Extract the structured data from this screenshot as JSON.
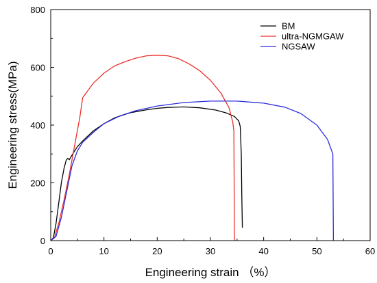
{
  "chart_data": {
    "type": "line",
    "xlabel": "Engineering strain （%）",
    "ylabel": "Engineering stress(MPa)",
    "xlim": [
      0,
      60
    ],
    "ylim": [
      0,
      800
    ],
    "x_ticks": [
      0,
      10,
      20,
      30,
      40,
      50,
      60
    ],
    "y_ticks": [
      0,
      200,
      400,
      600,
      800
    ],
    "grid": false,
    "legend_position": "top-right",
    "series": [
      {
        "name": "BM",
        "color": "#000000",
        "points": [
          [
            0,
            0
          ],
          [
            0.5,
            10
          ],
          [
            1,
            60
          ],
          [
            1.5,
            130
          ],
          [
            2,
            200
          ],
          [
            2.5,
            250
          ],
          [
            2.9,
            278
          ],
          [
            3.2,
            285
          ],
          [
            3.5,
            280
          ],
          [
            3.8,
            290
          ],
          [
            4.3,
            305
          ],
          [
            5,
            325
          ],
          [
            6,
            345
          ],
          [
            8,
            380
          ],
          [
            10,
            405
          ],
          [
            12,
            425
          ],
          [
            15,
            443
          ],
          [
            18,
            453
          ],
          [
            20,
            458
          ],
          [
            22,
            461
          ],
          [
            25,
            463
          ],
          [
            28,
            460
          ],
          [
            31,
            452
          ],
          [
            33,
            442
          ],
          [
            34.5,
            430
          ],
          [
            35.3,
            415
          ],
          [
            35.6,
            395
          ],
          [
            35.8,
            300
          ],
          [
            35.9,
            150
          ],
          [
            36.0,
            45
          ]
        ]
      },
      {
        "name": "ultra-NGMGAW",
        "color": "#e8302a",
        "points": [
          [
            0,
            0
          ],
          [
            0.7,
            10
          ],
          [
            1.5,
            60
          ],
          [
            2.5,
            140
          ],
          [
            3.5,
            230
          ],
          [
            4.5,
            330
          ],
          [
            5.5,
            430
          ],
          [
            6,
            495
          ],
          [
            7,
            520
          ],
          [
            8,
            545
          ],
          [
            10,
            580
          ],
          [
            12,
            605
          ],
          [
            14,
            620
          ],
          [
            16,
            632
          ],
          [
            18,
            640
          ],
          [
            20,
            642
          ],
          [
            22,
            640
          ],
          [
            24,
            630
          ],
          [
            26,
            612
          ],
          [
            28,
            588
          ],
          [
            30,
            555
          ],
          [
            32,
            510
          ],
          [
            33.5,
            460
          ],
          [
            34.2,
            410
          ],
          [
            34.4,
            380
          ],
          [
            34.45,
            200
          ],
          [
            34.5,
            0
          ]
        ]
      },
      {
        "name": "NGSAW",
        "color": "#2b2bdb",
        "points": [
          [
            0,
            0
          ],
          [
            1,
            15
          ],
          [
            2,
            80
          ],
          [
            3,
            170
          ],
          [
            4,
            260
          ],
          [
            5,
            310
          ],
          [
            6,
            340
          ],
          [
            8,
            375
          ],
          [
            10,
            405
          ],
          [
            13,
            432
          ],
          [
            16,
            450
          ],
          [
            20,
            466
          ],
          [
            25,
            478
          ],
          [
            30,
            483
          ],
          [
            35,
            483
          ],
          [
            40,
            476
          ],
          [
            44,
            462
          ],
          [
            47,
            440
          ],
          [
            50,
            400
          ],
          [
            52,
            350
          ],
          [
            53,
            300
          ],
          [
            53.05,
            150
          ],
          [
            53.1,
            0
          ]
        ]
      }
    ]
  }
}
